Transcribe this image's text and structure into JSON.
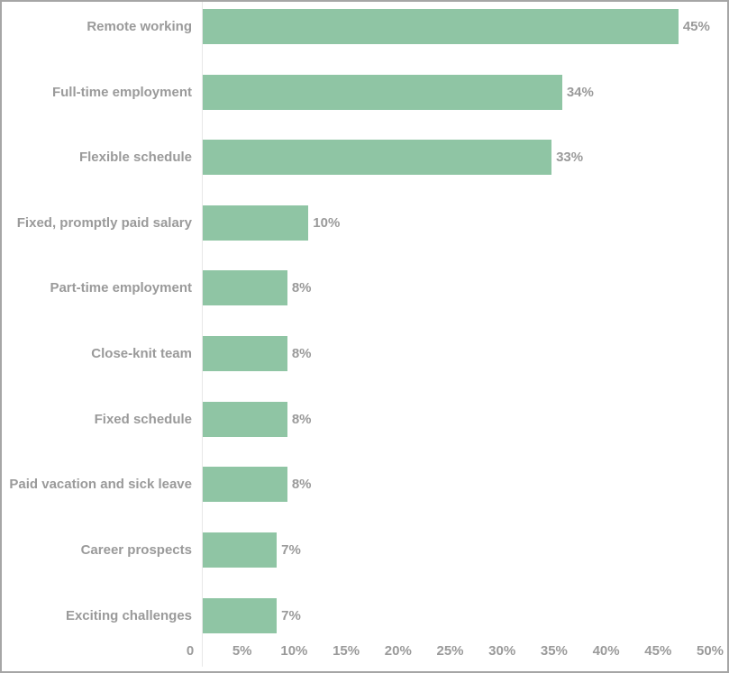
{
  "chart_data": {
    "type": "bar",
    "orientation": "horizontal",
    "title": "",
    "categories": [
      "Remote working",
      "Full-time employment",
      "Flexible schedule",
      "Fixed, promptly paid salary",
      "Part-time employment",
      "Close-knit team",
      "Fixed schedule",
      "Paid vacation and sick leave",
      "Career prospects",
      "Exciting challenges"
    ],
    "values": [
      45,
      34,
      33,
      10,
      8,
      8,
      8,
      8,
      7,
      7
    ],
    "value_labels": [
      "45%",
      "34%",
      "33%",
      "10%",
      "8%",
      "8%",
      "8%",
      "8%",
      "7%",
      "7%"
    ],
    "x_ticks": [
      "0",
      "5%",
      "10%",
      "15%",
      "20%",
      "25%",
      "30%",
      "35%",
      "40%",
      "45%",
      "50%"
    ],
    "xlim": [
      0,
      50
    ],
    "unit": "%",
    "grid": false,
    "legend_position": "none",
    "colors": {
      "bar": "#8fc5a4",
      "text": "#9a9a9a",
      "axis_line": "#e8e8e8",
      "border": "#a6a6a6",
      "background": "#ffffff"
    }
  }
}
